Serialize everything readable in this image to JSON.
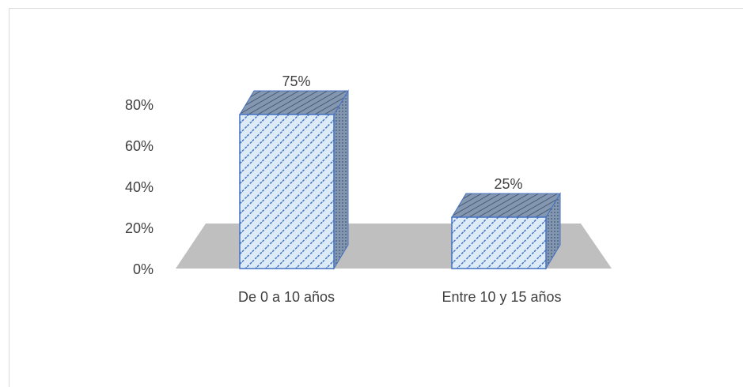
{
  "chart_data": {
    "type": "bar",
    "style": "3d-column",
    "categories": [
      "De 0 a 10 años",
      "Entre 10 y 15 años"
    ],
    "values": [
      75,
      25
    ],
    "data_labels": [
      "75%",
      "25%"
    ],
    "y_ticks": [
      "0%",
      "20%",
      "40%",
      "60%",
      "80%"
    ],
    "y_tick_values": [
      0,
      20,
      40,
      60,
      80
    ],
    "ylim": [
      0,
      80
    ],
    "title": "",
    "xlabel": "",
    "ylabel": "",
    "grid": false,
    "legend": "none",
    "colors": {
      "bar_fill": "#ddebf7",
      "bar_pattern": "#4472c4",
      "bar_edge": "#4472c4",
      "bar_side": "#8497b0",
      "floor": "#bfbfbf",
      "text": "#404040"
    }
  }
}
